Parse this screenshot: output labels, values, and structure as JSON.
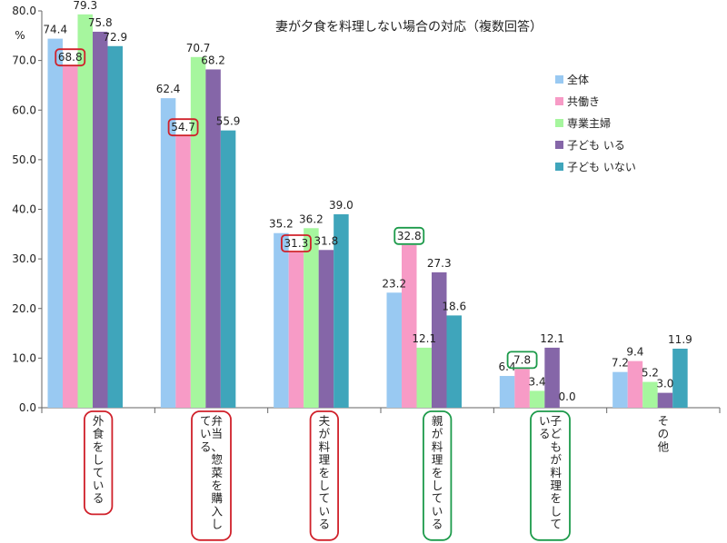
{
  "chart_data": {
    "type": "bar",
    "title": "妻が夕食を料理しない場合の対応（複数回答）",
    "ylabel_unit": "%",
    "ylim": [
      0,
      80
    ],
    "yticks": [
      "0.0",
      "10.0",
      "20.0",
      "30.0",
      "40.0",
      "50.0",
      "60.0",
      "70.0",
      "80.0"
    ],
    "grid": false,
    "legend_position": "right",
    "categories": [
      {
        "lines": [
          "外食をしている"
        ],
        "box": "red"
      },
      {
        "lines": [
          "弁当、惣菜を購入し",
          "ている"
        ],
        "box": "red"
      },
      {
        "lines": [
          "夫が料理をしている"
        ],
        "box": "red"
      },
      {
        "lines": [
          "親が料理をしている"
        ],
        "box": "green"
      },
      {
        "lines": [
          "子どもが料理をして",
          "いる"
        ],
        "box": "green"
      },
      {
        "lines": [
          "その他"
        ],
        "box": ""
      }
    ],
    "series": [
      {
        "name": "全体",
        "color": "#99c9f2",
        "values": [
          74.4,
          62.4,
          35.2,
          23.2,
          6.4,
          7.2
        ]
      },
      {
        "name": "共働き",
        "color": "#f79bc6",
        "values": [
          68.8,
          54.7,
          31.3,
          32.8,
          7.8,
          9.4
        ]
      },
      {
        "name": "専業主婦",
        "color": "#a6f69e",
        "values": [
          79.3,
          70.7,
          36.2,
          12.1,
          3.4,
          5.2
        ]
      },
      {
        "name": "子ども いる",
        "color": "#8566a8",
        "values": [
          75.8,
          68.2,
          31.8,
          27.3,
          12.1,
          3.0
        ]
      },
      {
        "name": "子ども いない",
        "color": "#3fa5bb",
        "values": [
          72.9,
          55.9,
          39.0,
          18.6,
          0.0,
          11.9
        ]
      }
    ],
    "boxed_labels": [
      {
        "category": 0,
        "series": 1,
        "color": "red"
      },
      {
        "category": 1,
        "series": 1,
        "color": "red"
      },
      {
        "category": 2,
        "series": 1,
        "color": "red"
      },
      {
        "category": 3,
        "series": 1,
        "color": "green"
      },
      {
        "category": 4,
        "series": 1,
        "color": "green"
      }
    ],
    "highlight_colors": {
      "red": "#d0202a",
      "green": "#1c9a4a"
    }
  }
}
